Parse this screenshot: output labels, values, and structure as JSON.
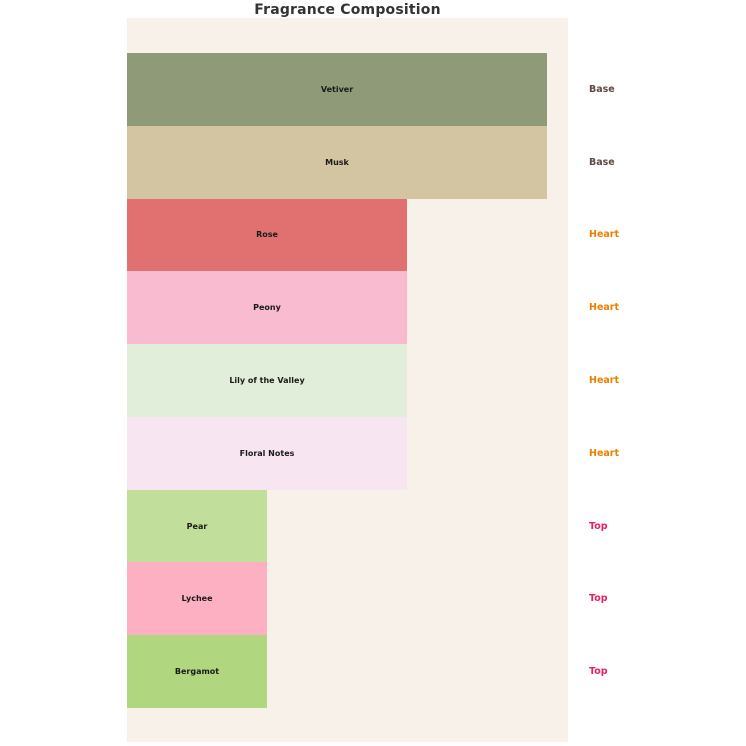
{
  "chart_data": {
    "type": "bar",
    "orientation": "horizontal",
    "title": "Fragrance Composition",
    "xlim": [
      0,
      3.15
    ],
    "grid": false,
    "plot_background": "#f7f1ea",
    "bars": [
      {
        "label": "Vetiver",
        "stage": "Base",
        "value": 3,
        "color": "#8e9a78"
      },
      {
        "label": "Musk",
        "stage": "Base",
        "value": 3,
        "color": "#d4c5a2"
      },
      {
        "label": "Rose",
        "stage": "Heart",
        "value": 2,
        "color": "#e17170"
      },
      {
        "label": "Peony",
        "stage": "Heart",
        "value": 2,
        "color": "#f8bbcf"
      },
      {
        "label": "Lily of the Valley",
        "stage": "Heart",
        "value": 2,
        "color": "#e1eed9"
      },
      {
        "label": "Floral Notes",
        "stage": "Heart",
        "value": 2,
        "color": "#f7e6f1"
      },
      {
        "label": "Pear",
        "stage": "Top",
        "value": 1,
        "color": "#c1df9b"
      },
      {
        "label": "Lychee",
        "stage": "Top",
        "value": 1,
        "color": "#fdb0c1"
      },
      {
        "label": "Bergamot",
        "stage": "Top",
        "value": 1,
        "color": "#b0d67f"
      }
    ],
    "stage_colors": {
      "Base": "#5d4a42",
      "Heart": "#ef7d00",
      "Top": "#e7215f"
    }
  }
}
